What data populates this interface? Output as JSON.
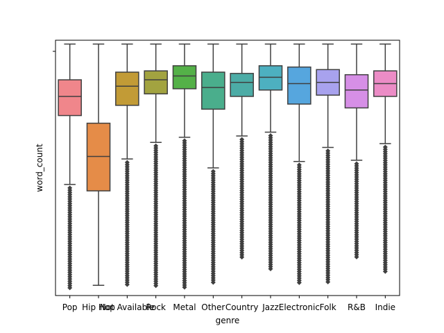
{
  "chart_data": {
    "type": "box",
    "xlabel": "genre",
    "ylabel": "word_count",
    "categories": [
      "Pop",
      "Hip Hop",
      "Not Available",
      "Rock",
      "Metal",
      "Other",
      "Country",
      "Jazz",
      "Electronic",
      "Folk",
      "R&B",
      "Indie"
    ],
    "y_scale": "log",
    "y_ticks_labeled": false,
    "ylim": [
      0.0,
      1.0
    ],
    "grid": false,
    "legend": "none",
    "boxes": [
      {
        "category": "Pop",
        "color": "#f0868b",
        "whisker_low": 0.435,
        "q1": 0.705,
        "median": 0.78,
        "q3": 0.845,
        "whisker_high": 0.985,
        "outlier_min": 0.03
      },
      {
        "category": "Hip Hop",
        "color": "#e58c48",
        "whisker_low": 0.04,
        "q1": 0.41,
        "median": 0.545,
        "q3": 0.675,
        "whisker_high": 0.985,
        "outlier_min": null
      },
      {
        "category": "Not Available",
        "color": "#c29b36",
        "whisker_low": 0.535,
        "q1": 0.745,
        "median": 0.82,
        "q3": 0.875,
        "whisker_high": 0.985,
        "outlier_min": 0.035
      },
      {
        "category": "Rock",
        "color": "#a2a340",
        "whisker_low": 0.6,
        "q1": 0.79,
        "median": 0.845,
        "q3": 0.88,
        "whisker_high": 0.985,
        "outlier_min": 0.03
      },
      {
        "category": "Metal",
        "color": "#54b148",
        "whisker_low": 0.62,
        "q1": 0.81,
        "median": 0.86,
        "q3": 0.9,
        "whisker_high": 0.985,
        "outlier_min": 0.03
      },
      {
        "category": "Other",
        "color": "#4aae8c",
        "whisker_low": 0.5,
        "q1": 0.73,
        "median": 0.815,
        "q3": 0.875,
        "whisker_high": 0.985,
        "outlier_min": 0.05
      },
      {
        "category": "Country",
        "color": "#4caca6",
        "whisker_low": 0.625,
        "q1": 0.78,
        "median": 0.835,
        "q3": 0.87,
        "whisker_high": 0.985,
        "outlier_min": 0.145
      },
      {
        "category": "Jazz",
        "color": "#4db0c0",
        "whisker_low": 0.64,
        "q1": 0.805,
        "median": 0.855,
        "q3": 0.9,
        "whisker_high": 0.985,
        "outlier_min": 0.1
      },
      {
        "category": "Electronic",
        "color": "#56a6de",
        "whisker_low": 0.525,
        "q1": 0.75,
        "median": 0.83,
        "q3": 0.895,
        "whisker_high": 0.985,
        "outlier_min": 0.05
      },
      {
        "category": "Folk",
        "color": "#a8a2ee",
        "whisker_low": 0.58,
        "q1": 0.785,
        "median": 0.835,
        "q3": 0.885,
        "whisker_high": 0.985,
        "outlier_min": 0.045
      },
      {
        "category": "R&B",
        "color": "#d68fe6",
        "whisker_low": 0.53,
        "q1": 0.735,
        "median": 0.805,
        "q3": 0.865,
        "whisker_high": 0.985,
        "outlier_min": 0.15
      },
      {
        "category": "Indie",
        "color": "#ec8cc6",
        "whisker_low": 0.595,
        "q1": 0.78,
        "median": 0.83,
        "q3": 0.88,
        "whisker_high": 0.985,
        "outlier_min": 0.09
      }
    ]
  }
}
